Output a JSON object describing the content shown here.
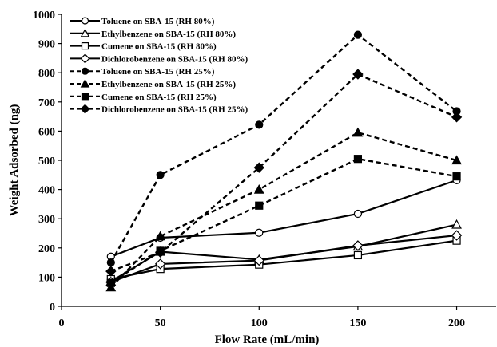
{
  "chart_data": {
    "type": "line",
    "xlabel": "Flow Rate (mL/min)",
    "ylabel": "Weight Adsorbed (ng)",
    "xlim": [
      0,
      220
    ],
    "ylim": [
      0,
      1000
    ],
    "xticks": [
      0,
      50,
      100,
      150,
      200
    ],
    "yticks": [
      0,
      100,
      200,
      300,
      400,
      500,
      600,
      700,
      800,
      900,
      1000
    ],
    "grid": false,
    "legend_position": "top-left",
    "x": [
      25,
      50,
      100,
      150,
      200
    ],
    "series": [
      {
        "name": "Toluene on SBA-15 (RH 80%)",
        "values": [
          170,
          235,
          252,
          317,
          432
        ],
        "line": "solid",
        "marker": "circle",
        "filled": false
      },
      {
        "name": "Ethylbenzene on SBA-15 (RH 80%)",
        "values": [
          85,
          187,
          160,
          205,
          280
        ],
        "line": "solid",
        "marker": "triangle",
        "filled": false
      },
      {
        "name": "Cumene on SBA-15 (RH 80%)",
        "values": [
          93,
          128,
          143,
          175,
          225
        ],
        "line": "solid",
        "marker": "square",
        "filled": false
      },
      {
        "name": "Dichlorobenzene on SBA-15 (RH 80%)",
        "values": [
          83,
          145,
          157,
          208,
          243
        ],
        "line": "solid",
        "marker": "diamond",
        "filled": false
      },
      {
        "name": "Toluene on SBA-15 (RH 25%)",
        "values": [
          150,
          450,
          622,
          930,
          668
        ],
        "line": "dashed",
        "marker": "circle",
        "filled": true
      },
      {
        "name": "Ethylbenzene on SBA-15 (RH 25%)",
        "values": [
          65,
          240,
          400,
          595,
          500
        ],
        "line": "dashed",
        "marker": "triangle",
        "filled": true
      },
      {
        "name": "Cumene on SBA-15 (RH 25%)",
        "values": [
          80,
          190,
          345,
          505,
          445
        ],
        "line": "dashed",
        "marker": "square",
        "filled": true
      },
      {
        "name": "Dichlorobenzene on SBA-15 (RH 25%)",
        "values": [
          120,
          185,
          475,
          795,
          648
        ],
        "line": "dashed",
        "marker": "diamond",
        "filled": true
      }
    ]
  }
}
